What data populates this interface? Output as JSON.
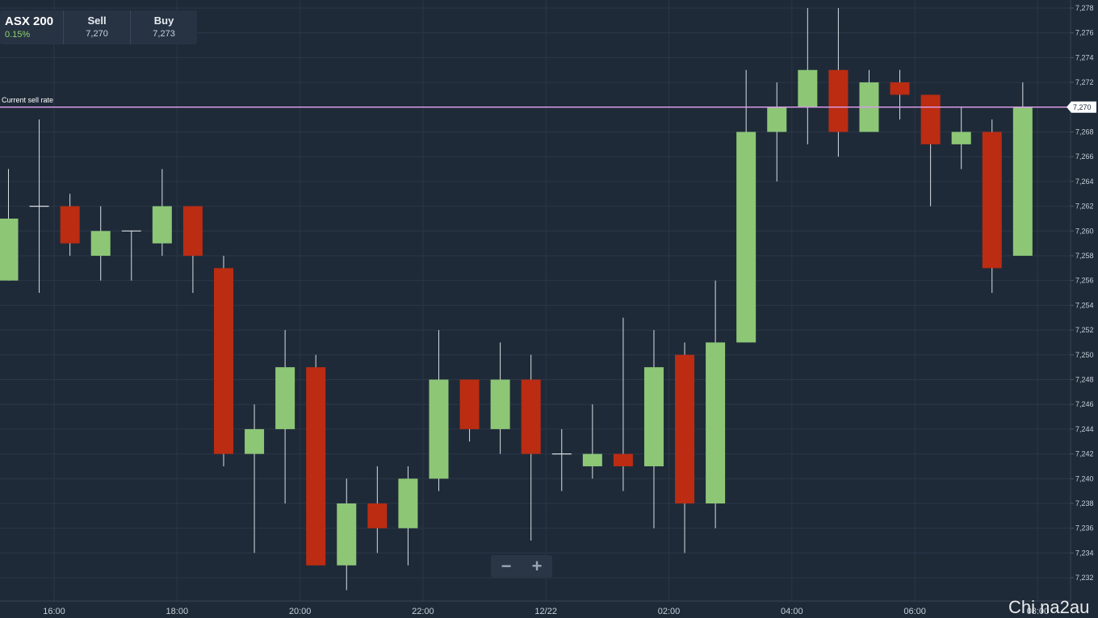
{
  "ticker": {
    "symbol": "ASX 200",
    "change": "0.15%",
    "sell_label": "Sell",
    "sell_value": "7,270",
    "buy_label": "Buy",
    "buy_value": "7,273"
  },
  "current_sell_rate_label": "Current sell rate",
  "current_sell_rate_value": "7,270",
  "zoom": {
    "minus": "−",
    "plus": "+"
  },
  "watermark": "Chi na2au",
  "colors": {
    "background": "#1f2a38",
    "grid": "#2b3748",
    "up": "#8dc776",
    "down": "#bb2c12",
    "wick": "#d8dde3",
    "sell_line": "#d99be6",
    "axis_text": "#c6ced8"
  },
  "chart_data": {
    "type": "candlestick",
    "title": "",
    "xlabel": "",
    "ylabel": "",
    "ylim": [
      7231,
      7279
    ],
    "grid": true,
    "y_ticks": [
      "7,232",
      "7,234",
      "7,236",
      "7,238",
      "7,240",
      "7,242",
      "7,244",
      "7,246",
      "7,248",
      "7,250",
      "7,252",
      "7,254",
      "7,256",
      "7,258",
      "7,260",
      "7,262",
      "7,264",
      "7,266",
      "7,268",
      "7,270",
      "7,272",
      "7,274",
      "7,276",
      "7,278"
    ],
    "x_ticks": [
      "16:00",
      "18:00",
      "20:00",
      "22:00",
      "12/22",
      "02:00",
      "04:00",
      "06:00",
      "08:00"
    ],
    "current_sell_rate": 7270,
    "candles": [
      {
        "o": 7256,
        "h": 7265,
        "l": 7256,
        "c": 7261
      },
      {
        "o": 7262,
        "h": 7269,
        "l": 7255,
        "c": 7262
      },
      {
        "o": 7262,
        "h": 7263,
        "l": 7258,
        "c": 7259
      },
      {
        "o": 7258,
        "h": 7262,
        "l": 7256,
        "c": 7260
      },
      {
        "o": 7260,
        "h": 7260,
        "l": 7256,
        "c": 7260
      },
      {
        "o": 7259,
        "h": 7265,
        "l": 7258,
        "c": 7262
      },
      {
        "o": 7262,
        "h": 7262,
        "l": 7255,
        "c": 7258
      },
      {
        "o": 7257,
        "h": 7258,
        "l": 7241,
        "c": 7242
      },
      {
        "o": 7242,
        "h": 7246,
        "l": 7234,
        "c": 7244
      },
      {
        "o": 7244,
        "h": 7252,
        "l": 7238,
        "c": 7249
      },
      {
        "o": 7249,
        "h": 7250,
        "l": 7233,
        "c": 7233
      },
      {
        "o": 7233,
        "h": 7240,
        "l": 7231,
        "c": 7238
      },
      {
        "o": 7238,
        "h": 7241,
        "l": 7234,
        "c": 7236
      },
      {
        "o": 7236,
        "h": 7241,
        "l": 7233,
        "c": 7240
      },
      {
        "o": 7240,
        "h": 7252,
        "l": 7239,
        "c": 7248
      },
      {
        "o": 7248,
        "h": 7248,
        "l": 7243,
        "c": 7244
      },
      {
        "o": 7244,
        "h": 7251,
        "l": 7242,
        "c": 7248
      },
      {
        "o": 7248,
        "h": 7250,
        "l": 7235,
        "c": 7242
      },
      {
        "o": 7242,
        "h": 7244,
        "l": 7239,
        "c": 7242
      },
      {
        "o": 7241,
        "h": 7246,
        "l": 7240,
        "c": 7242
      },
      {
        "o": 7242,
        "h": 7253,
        "l": 7239,
        "c": 7241
      },
      {
        "o": 7241,
        "h": 7252,
        "l": 7236,
        "c": 7249
      },
      {
        "o": 7250,
        "h": 7251,
        "l": 7234,
        "c": 7238
      },
      {
        "o": 7238,
        "h": 7256,
        "l": 7236,
        "c": 7251
      },
      {
        "o": 7251,
        "h": 7273,
        "l": 7251,
        "c": 7268
      },
      {
        "o": 7268,
        "h": 7272,
        "l": 7264,
        "c": 7270
      },
      {
        "o": 7270,
        "h": 7278,
        "l": 7267,
        "c": 7273
      },
      {
        "o": 7273,
        "h": 7278,
        "l": 7266,
        "c": 7268
      },
      {
        "o": 7268,
        "h": 7273,
        "l": 7268,
        "c": 7272
      },
      {
        "o": 7272,
        "h": 7273,
        "l": 7269,
        "c": 7271
      },
      {
        "o": 7271,
        "h": 7271,
        "l": 7262,
        "c": 7267
      },
      {
        "o": 7267,
        "h": 7270,
        "l": 7265,
        "c": 7268
      },
      {
        "o": 7268,
        "h": 7269,
        "l": 7255,
        "c": 7257
      },
      {
        "o": 7258,
        "h": 7272,
        "l": 7258,
        "c": 7270
      }
    ]
  }
}
